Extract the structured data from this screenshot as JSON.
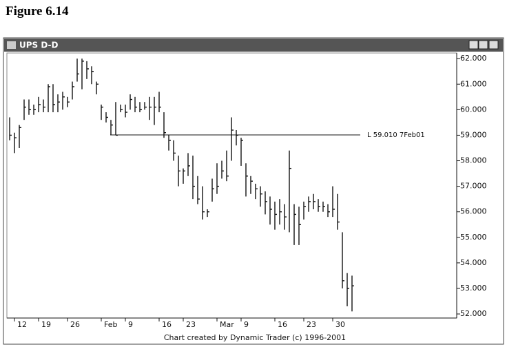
{
  "figure_label": "Figure 6.14",
  "chart_data": {
    "type": "bar-hlc",
    "title": "UPS D-D",
    "footer": "Chart created by Dynamic Trader (c) 1996-2001",
    "categories": [
      null,
      "12",
      null,
      null,
      null,
      null,
      "19",
      null,
      null,
      null,
      null,
      null,
      "26",
      null,
      null,
      null,
      null,
      null,
      null,
      "Feb",
      null,
      null,
      null,
      null,
      "9",
      null,
      null,
      null,
      null,
      null,
      null,
      "16",
      null,
      null,
      null,
      null,
      "23",
      null,
      null,
      null,
      null,
      null,
      null,
      "Mar",
      null,
      null,
      null,
      null,
      "9",
      null,
      null,
      null,
      null,
      null,
      null,
      "16",
      null,
      null,
      null,
      null,
      null,
      "23",
      null,
      null,
      null,
      null,
      null,
      "30",
      null,
      null,
      null,
      null
    ],
    "high": [
      59.7,
      59.1,
      59.4,
      60.4,
      60.4,
      60.2,
      60.5,
      60.4,
      61.0,
      61.0,
      60.6,
      60.7,
      60.5,
      61.1,
      62.0,
      62.0,
      61.9,
      61.7,
      61.1,
      60.2,
      59.9,
      59.6,
      60.3,
      60.2,
      60.2,
      60.6,
      60.5,
      60.3,
      60.3,
      60.5,
      60.5,
      60.7,
      59.9,
      59.0,
      58.8,
      58.2,
      57.7,
      58.3,
      58.2,
      57.4,
      57.0,
      56.1,
      57.3,
      57.9,
      58.0,
      58.4,
      59.7,
      59.2,
      58.9,
      57.9,
      57.4,
      57.1,
      57.0,
      56.8,
      56.6,
      56.4,
      56.5,
      56.3,
      58.4,
      56.3,
      56.2,
      56.4,
      56.6,
      56.7,
      56.5,
      56.4,
      56.3,
      57.0,
      56.7,
      55.2,
      53.6,
      53.5
    ],
    "low": [
      58.8,
      58.3,
      58.5,
      59.6,
      59.8,
      59.8,
      59.9,
      59.9,
      59.9,
      59.9,
      59.9,
      60.0,
      60.1,
      60.4,
      61.1,
      60.8,
      61.2,
      61.0,
      60.6,
      59.6,
      59.5,
      59.0,
      59.0,
      59.9,
      59.7,
      60.0,
      59.9,
      59.9,
      60.0,
      59.6,
      59.4,
      59.9,
      58.9,
      58.4,
      58.0,
      57.0,
      57.1,
      57.4,
      56.5,
      56.3,
      55.7,
      55.8,
      56.4,
      56.7,
      57.3,
      57.2,
      58.0,
      58.6,
      57.8,
      56.6,
      56.7,
      56.5,
      56.2,
      55.9,
      55.5,
      55.3,
      55.5,
      55.3,
      55.2,
      54.7,
      54.7,
      55.7,
      56.0,
      56.1,
      56.0,
      56.0,
      55.8,
      55.8,
      55.3,
      53.0,
      52.3,
      52.1
    ],
    "close": [
      59.0,
      58.9,
      59.3,
      60.1,
      60.0,
      60.0,
      60.2,
      60.1,
      60.9,
      60.2,
      60.3,
      60.5,
      60.3,
      60.9,
      61.4,
      61.9,
      61.6,
      61.5,
      61.0,
      60.1,
      59.7,
      59.4,
      59.0,
      60.0,
      59.9,
      60.4,
      60.1,
      60.0,
      60.1,
      60.1,
      60.1,
      60.1,
      59.1,
      58.8,
      58.3,
      57.6,
      57.6,
      57.8,
      57.0,
      56.5,
      56.0,
      56.0,
      56.9,
      57.0,
      57.6,
      57.4,
      59.2,
      59.0,
      58.8,
      57.4,
      57.2,
      56.9,
      56.7,
      56.4,
      56.1,
      55.9,
      56.0,
      55.8,
      57.7,
      55.9,
      55.5,
      56.2,
      56.4,
      56.4,
      56.2,
      56.2,
      56.0,
      56.1,
      55.6,
      53.3,
      53.0,
      53.1
    ],
    "color": "#111111",
    "level_line": {
      "value": 59.01,
      "label": "L 59.010 7Feb01"
    },
    "ylim": [
      51.84,
      62.22
    ],
    "yticks": [
      {
        "value": 52,
        "label": "52.000"
      },
      {
        "value": 53,
        "label": "53.000"
      },
      {
        "value": 54,
        "label": "54.000"
      },
      {
        "value": 55,
        "label": "55.000"
      },
      {
        "value": 56,
        "label": "56.000"
      },
      {
        "value": 57,
        "label": "57.000"
      },
      {
        "value": 58,
        "label": "58.000"
      },
      {
        "value": 59,
        "label": "59.000"
      },
      {
        "value": 60,
        "label": "60.000"
      },
      {
        "value": 61,
        "label": "61.000"
      },
      {
        "value": 62,
        "label": "62.000"
      }
    ]
  }
}
